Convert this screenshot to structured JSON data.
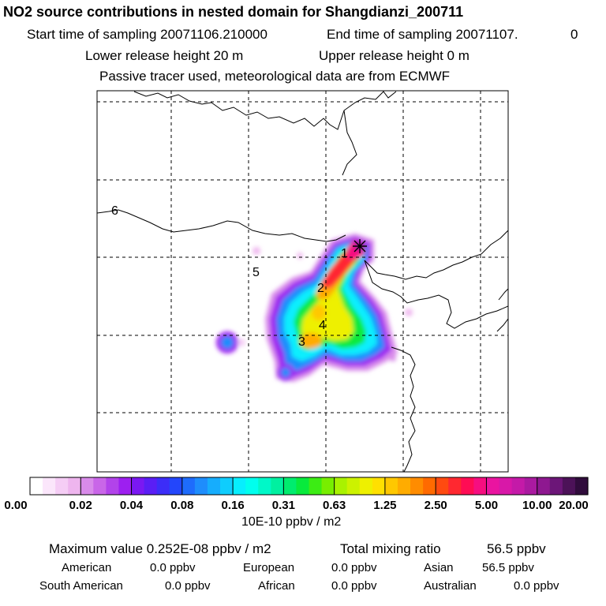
{
  "title": "NO2 source contributions in nested domain for Shangdianzi_200711",
  "sampling": {
    "start_label": "Start time of sampling 20071106.210000",
    "end_label": "End time of sampling 20071107.",
    "end_suffix": "0"
  },
  "release": {
    "lower_label": "Lower release height   20 m",
    "upper_label": "Upper release height    0 m"
  },
  "tracer_note": "Passive tracer used, meteorological data are from ECMWF",
  "map_labels": [
    "1",
    "2",
    "3",
    "4",
    "5",
    "6"
  ],
  "colorbar": {
    "tick_labels": [
      "0.00",
      "0.02",
      "0.04",
      "0.08",
      "0.16",
      "0.31",
      "0.63",
      "1.25",
      "2.50",
      "5.00",
      "10.00",
      "20.00"
    ],
    "colors": [
      "#ffffff",
      "#fbe6fb",
      "#f5cdf5",
      "#eeb5ee",
      "#d98bea",
      "#c966e8",
      "#b243ea",
      "#9d1ff0",
      "#7a18f2",
      "#5a1ef5",
      "#3c2df8",
      "#2346fb",
      "#1e6cfc",
      "#1e8dfc",
      "#16adfd",
      "#0fcdfd",
      "#07eefe",
      "#00ffee",
      "#00f8c8",
      "#00f0a0",
      "#00ec6e",
      "#08ea3c",
      "#3cec14",
      "#78ee00",
      "#a9f200",
      "#ccf200",
      "#eef000",
      "#ffe000",
      "#ffc800",
      "#ffac00",
      "#ff8c00",
      "#ff6a00",
      "#ff4a10",
      "#ff2830",
      "#ff0c54",
      "#f60e80",
      "#ea14a0",
      "#d818a8",
      "#c41aa8",
      "#aa1aa0",
      "#8e1890",
      "#6c1678",
      "#4c1258",
      "#300c3c"
    ],
    "unit_label": "10E-10 ppbv / m2"
  },
  "summary": {
    "max_label": "Maximum value  0.252E-08 ppbv / m2",
    "total_label": "Total mixing ratio",
    "total_value": "56.5 ppbv",
    "regions": [
      {
        "name": "American",
        "value": "0.0 ppbv"
      },
      {
        "name": "European",
        "value": "0.0 ppbv"
      },
      {
        "name": "Asian",
        "value": "56.5 ppbv"
      },
      {
        "name": "South American",
        "value": "0.0 ppbv"
      },
      {
        "name": "African",
        "value": "0.0 ppbv"
      },
      {
        "name": "Australian",
        "value": "0.0 ppbv"
      }
    ]
  }
}
